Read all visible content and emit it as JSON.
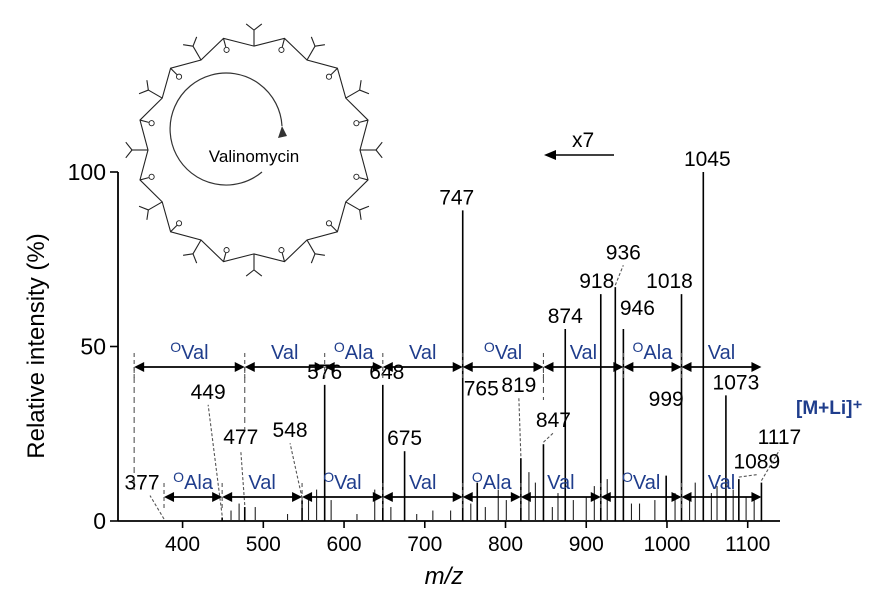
{
  "chart_data": {
    "type": "bar",
    "xlabel": "m/z",
    "ylabel": "Relative intensity (%)",
    "xlim": [
      320,
      1140
    ],
    "ylim": [
      0,
      100
    ],
    "xticks": [
      "400",
      "500",
      "600",
      "700",
      "800",
      "900",
      "1000",
      "1100"
    ],
    "yticks": [
      "0",
      "50",
      "100"
    ],
    "grid": false,
    "peaks": [
      {
        "mz": 377,
        "intensity": 0,
        "label": "377"
      },
      {
        "mz": 449,
        "intensity": 1,
        "label": "449"
      },
      {
        "mz": 477,
        "intensity": 4,
        "label": "477"
      },
      {
        "mz": 548,
        "intensity": 6,
        "label": "548"
      },
      {
        "mz": 576,
        "intensity": 39,
        "label": "576"
      },
      {
        "mz": 648,
        "intensity": 39,
        "label": "648"
      },
      {
        "mz": 675,
        "intensity": 20,
        "label": "675"
      },
      {
        "mz": 747,
        "intensity": 89,
        "label": "747"
      },
      {
        "mz": 765,
        "intensity": 11,
        "label": "765"
      },
      {
        "mz": 819,
        "intensity": 18,
        "label": "819"
      },
      {
        "mz": 847,
        "intensity": 22,
        "label": "847"
      },
      {
        "mz": 874,
        "intensity": 55,
        "label": "874"
      },
      {
        "mz": 918,
        "intensity": 65,
        "label": "918"
      },
      {
        "mz": 936,
        "intensity": 67,
        "label": "936"
      },
      {
        "mz": 946,
        "intensity": 55,
        "label": "946"
      },
      {
        "mz": 1018,
        "intensity": 65,
        "label": "1018"
      },
      {
        "mz": 1045,
        "intensity": 100,
        "label": "1045"
      },
      {
        "mz": 1073,
        "intensity": 36,
        "label": "1073"
      },
      {
        "mz": 999,
        "intensity": 13,
        "label": "999"
      },
      {
        "mz": 1089,
        "intensity": 12,
        "label": "1089"
      },
      {
        "mz": 1117,
        "intensity": 11,
        "label": "1117"
      }
    ],
    "minor_peaks": [
      {
        "mz": 460,
        "intensity": 3
      },
      {
        "mz": 470,
        "intensity": 5
      },
      {
        "mz": 490,
        "intensity": 4
      },
      {
        "mz": 530,
        "intensity": 2
      },
      {
        "mz": 556,
        "intensity": 6
      },
      {
        "mz": 566,
        "intensity": 9
      },
      {
        "mz": 584,
        "intensity": 6
      },
      {
        "mz": 616,
        "intensity": 2
      },
      {
        "mz": 638,
        "intensity": 9
      },
      {
        "mz": 658,
        "intensity": 4
      },
      {
        "mz": 690,
        "intensity": 2
      },
      {
        "mz": 710,
        "intensity": 3
      },
      {
        "mz": 732,
        "intensity": 3
      },
      {
        "mz": 757,
        "intensity": 5
      },
      {
        "mz": 775,
        "intensity": 4
      },
      {
        "mz": 791,
        "intensity": 9
      },
      {
        "mz": 801,
        "intensity": 6
      },
      {
        "mz": 829,
        "intensity": 14
      },
      {
        "mz": 837,
        "intensity": 11
      },
      {
        "mz": 858,
        "intensity": 4
      },
      {
        "mz": 865,
        "intensity": 8
      },
      {
        "mz": 884,
        "intensity": 6
      },
      {
        "mz": 900,
        "intensity": 7
      },
      {
        "mz": 910,
        "intensity": 10
      },
      {
        "mz": 926,
        "intensity": 12
      },
      {
        "mz": 956,
        "intensity": 5
      },
      {
        "mz": 966,
        "intensity": 5
      },
      {
        "mz": 985,
        "intensity": 6
      },
      {
        "mz": 1010,
        "intensity": 8
      },
      {
        "mz": 1028,
        "intensity": 6
      },
      {
        "mz": 1035,
        "intensity": 11
      },
      {
        "mz": 1055,
        "intensity": 8
      },
      {
        "mz": 1062,
        "intensity": 10
      },
      {
        "mz": 1082,
        "intensity": 9
      },
      {
        "mz": 1098,
        "intensity": 7
      },
      {
        "mz": 1108,
        "intensity": 6
      }
    ],
    "zoom_label": "x7",
    "zoom_from_mz": 760,
    "molecule_label": "Valinomycin",
    "ion_label": "[M+Li]⁺",
    "upper_sequence": [
      {
        "from": 340,
        "to": 477,
        "label": "Val",
        "superscript": "O"
      },
      {
        "from": 477,
        "to": 576,
        "label": "Val",
        "superscript": ""
      },
      {
        "from": 576,
        "to": 648,
        "label": "Ala",
        "superscript": "O"
      },
      {
        "from": 648,
        "to": 747,
        "label": "Val",
        "superscript": ""
      },
      {
        "from": 747,
        "to": 847,
        "label": "Val",
        "superscript": "O"
      },
      {
        "from": 847,
        "to": 946,
        "label": "Val",
        "superscript": ""
      },
      {
        "from": 946,
        "to": 1018,
        "label": "Ala",
        "superscript": "O"
      },
      {
        "from": 1018,
        "to": 1117,
        "label": "Val",
        "superscript": ""
      }
    ],
    "lower_sequence": [
      {
        "from": 377,
        "to": 449,
        "label": "Ala",
        "superscript": "O"
      },
      {
        "from": 449,
        "to": 548,
        "label": "Val",
        "superscript": ""
      },
      {
        "from": 548,
        "to": 648,
        "label": "Val",
        "superscript": "O"
      },
      {
        "from": 648,
        "to": 747,
        "label": "Val",
        "superscript": ""
      },
      {
        "from": 747,
        "to": 819,
        "label": "Ala",
        "superscript": "O"
      },
      {
        "from": 819,
        "to": 918,
        "label": "Val",
        "superscript": ""
      },
      {
        "from": 918,
        "to": 1018,
        "label": "Val",
        "superscript": "O"
      },
      {
        "from": 1018,
        "to": 1117,
        "label": "Val",
        "superscript": ""
      }
    ]
  }
}
